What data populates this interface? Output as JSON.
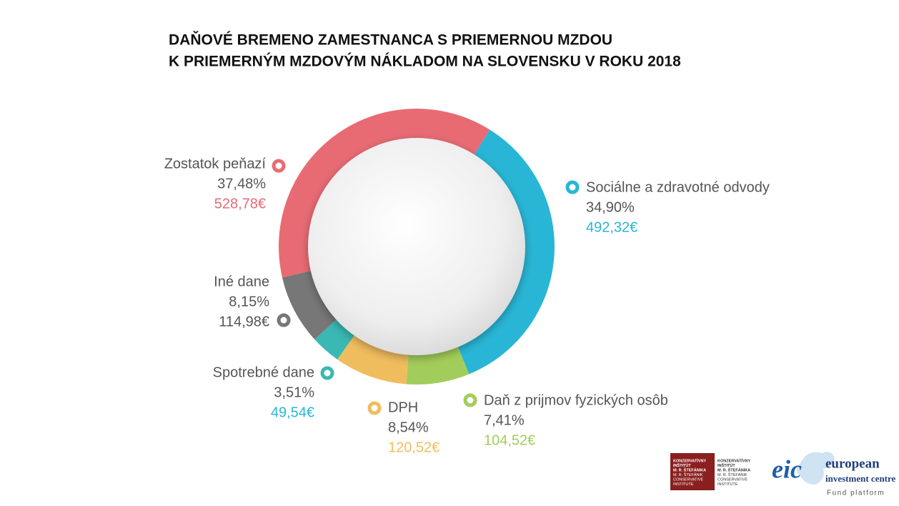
{
  "chart_data": {
    "type": "donut",
    "title": [
      "DAŇOVÉ BREMENO ZAMESTNANCA S PRIEMERNOU MZDOU",
      "K PRIEMERNÝM MZDOVÝM NÁKLADOM NA SLOVENSKU V ROKU 2018"
    ],
    "categories": [
      "Sociálne a zdravotné odvody",
      "Daň z prijmov fyzických osôb",
      "DPH",
      "Spotrebné dane",
      "Iné dane",
      "Zostatok peňazí"
    ],
    "values": [
      34.9,
      7.41,
      8.54,
      3.51,
      8.15,
      37.48
    ],
    "value_labels": [
      "34,90%",
      "7,41%",
      "8,54%",
      "3,51%",
      "8,15%",
      "37,48%"
    ],
    "amounts": [
      492.32,
      104.52,
      120.52,
      49.54,
      114.98,
      528.78
    ],
    "amount_labels": [
      "492,32€",
      "104,52€",
      "120,52€",
      "49,54€",
      "114,98€",
      "528,78€"
    ],
    "colors": [
      "#29b6d6",
      "#a3cd5a",
      "#f0bd5e",
      "#3bb8b3",
      "#777777",
      "#e86b74"
    ]
  },
  "logos": {
    "kis": [
      "KONZERVATÍVNY",
      "INŠTITÚT",
      "M. R. ŠTEFÁNIKA",
      "M. R. ŠTEFÁNIK",
      "CONSERVATIVE",
      "INSTITUTE"
    ],
    "eic": {
      "mark": "eic",
      "name": [
        "european",
        "investment centre"
      ],
      "tagline": "Fund platform"
    }
  }
}
